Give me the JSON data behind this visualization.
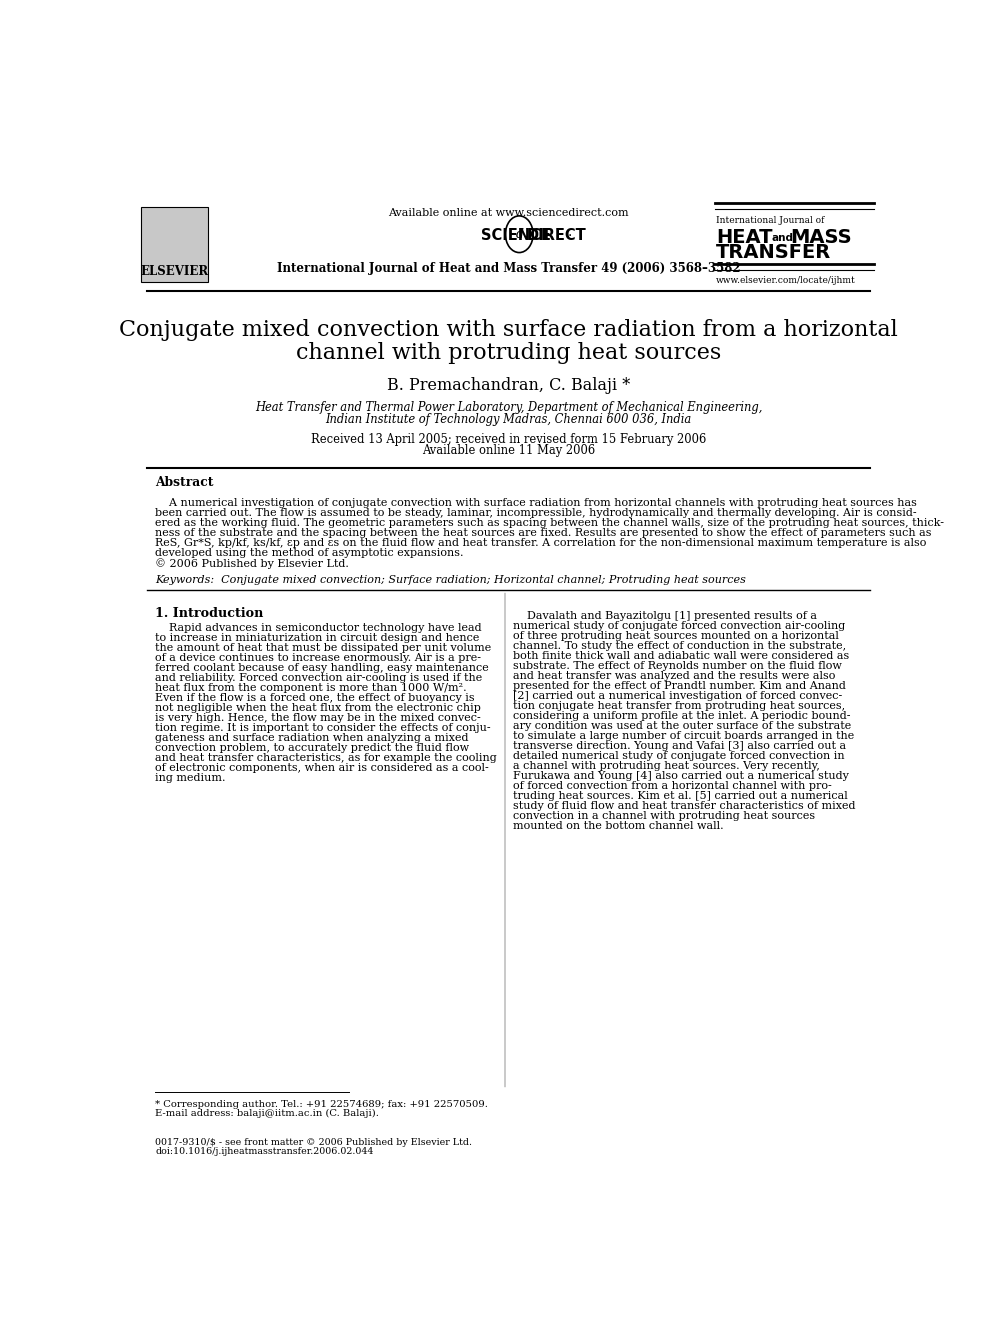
{
  "bg_color": "#ffffff",
  "title_line1": "Conjugate mixed convection with surface radiation from a horizontal",
  "title_line2": "channel with protruding heat sources",
  "authors": "B. Premachandran, C. Balaji *",
  "affil1": "Heat Transfer and Thermal Power Laboratory, Department of Mechanical Engineering,",
  "affil2": "Indian Institute of Technology Madras, Chennai 600 036, India",
  "dates": "Received 13 April 2005; received in revised form 15 February 2006",
  "available": "Available online 11 May 2006",
  "header_center_line1": "Available online at www.sciencedirect.com",
  "journal_line": "International Journal of Heat and Mass Transfer 49 (2006) 3568–3582",
  "journal_right1": "International Journal of",
  "journal_url": "www.elsevier.com/locate/ijhmt",
  "elsevier": "ELSEVIER",
  "abstract_title": "Abstract",
  "keywords_text": "Keywords:  Conjugate mixed convection; Surface radiation; Horizontal channel; Protruding heat sources",
  "section1_title": "1. Introduction",
  "footnote1": "* Corresponding author. Tel.: +91 22574689; fax: +91 22570509.",
  "footnote2": "E-mail address: balaji@iitm.ac.in (C. Balaji).",
  "footer1": "0017-9310/$ - see front matter © 2006 Published by Elsevier Ltd.",
  "footer2": "doi:10.1016/j.ijheatmasstransfer.2006.02.044",
  "abstract_lines": [
    "    A numerical investigation of conjugate convection with surface radiation from horizontal channels with protruding heat sources has",
    "been carried out. The flow is assumed to be steady, laminar, incompressible, hydrodynamically and thermally developing. Air is consid-",
    "ered as the working fluid. The geometric parameters such as spacing between the channel walls, size of the protruding heat sources, thick-",
    "ness of the substrate and the spacing between the heat sources are fixed. Results are presented to show the effect of parameters such as",
    "ReS, Gr*S, kp/kf, ks/kf, εp and εs on the fluid flow and heat transfer. A correlation for the non-dimensional maximum temperature is also",
    "developed using the method of asymptotic expansions.",
    "© 2006 Published by Elsevier Ltd."
  ],
  "col1_lines": [
    "    Rapid advances in semiconductor technology have lead",
    "to increase in miniaturization in circuit design and hence",
    "the amount of heat that must be dissipated per unit volume",
    "of a device continues to increase enormously. Air is a pre-",
    "ferred coolant because of easy handling, easy maintenance",
    "and reliability. Forced convection air-cooling is used if the",
    "heat flux from the component is more than 1000 W/m².",
    "Even if the flow is a forced one, the effect of buoyancy is",
    "not negligible when the heat flux from the electronic chip",
    "is very high. Hence, the flow may be in the mixed convec-",
    "tion regime. It is important to consider the effects of conju-",
    "gateness and surface radiation when analyzing a mixed",
    "convection problem, to accurately predict the fluid flow",
    "and heat transfer characteristics, as for example the cooling",
    "of electronic components, when air is considered as a cool-",
    "ing medium."
  ],
  "col2_lines": [
    "    Davalath and Bayazitolgu [1] presented results of a",
    "numerical study of conjugate forced convection air-cooling",
    "of three protruding heat sources mounted on a horizontal",
    "channel. To study the effect of conduction in the substrate,",
    "both finite thick wall and adiabatic wall were considered as",
    "substrate. The effect of Reynolds number on the fluid flow",
    "and heat transfer was analyzed and the results were also",
    "presented for the effect of Prandtl number. Kim and Anand",
    "[2] carried out a numerical investigation of forced convec-",
    "tion conjugate heat transfer from protruding heat sources,",
    "considering a uniform profile at the inlet. A periodic bound-",
    "ary condition was used at the outer surface of the substrate",
    "to simulate a large number of circuit boards arranged in the",
    "transverse direction. Young and Vafai [3] also carried out a",
    "detailed numerical study of conjugate forced convection in",
    "a channel with protruding heat sources. Very recently,",
    "Furukawa and Young [4] also carried out a numerical study",
    "of forced convection from a horizontal channel with pro-",
    "truding heat sources. Kim et al. [5] carried out a numerical",
    "study of fluid flow and heat transfer characteristics of mixed",
    "convection in a channel with protruding heat sources",
    "mounted on the bottom channel wall."
  ]
}
